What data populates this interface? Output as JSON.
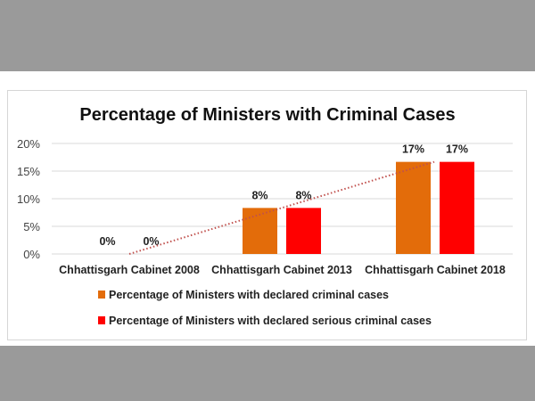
{
  "chart_data": {
    "type": "bar",
    "title": "Percentage of Ministers with Criminal Cases",
    "xlabel": "",
    "ylabel": "",
    "ylim": [
      0,
      20
    ],
    "yticks": [
      "0%",
      "5%",
      "10%",
      "15%",
      "20%"
    ],
    "grid": true,
    "legend_position": "bottom",
    "categories": [
      "Chhattisgarh Cabinet 2008",
      "Chhattisgarh  Cabinet 2013",
      "Chhattisgarh Cabinet 2018"
    ],
    "series": [
      {
        "name": "Percentage  of Ministers with declared criminal cases",
        "values": [
          0,
          8.33,
          16.67
        ],
        "labels": [
          "0%",
          "8%",
          "17%"
        ],
        "color": "#e36c0a"
      },
      {
        "name": "Percentage of Ministers with declared serious criminal cases",
        "values": [
          0,
          8.33,
          16.67
        ],
        "labels": [
          "0%",
          "8%",
          "17%"
        ],
        "color": "#ff0000"
      }
    ],
    "trendline": {
      "type": "linear",
      "style": "dotted",
      "color": "#c0504d"
    }
  },
  "colors": {
    "band": "#9a9a9a"
  }
}
